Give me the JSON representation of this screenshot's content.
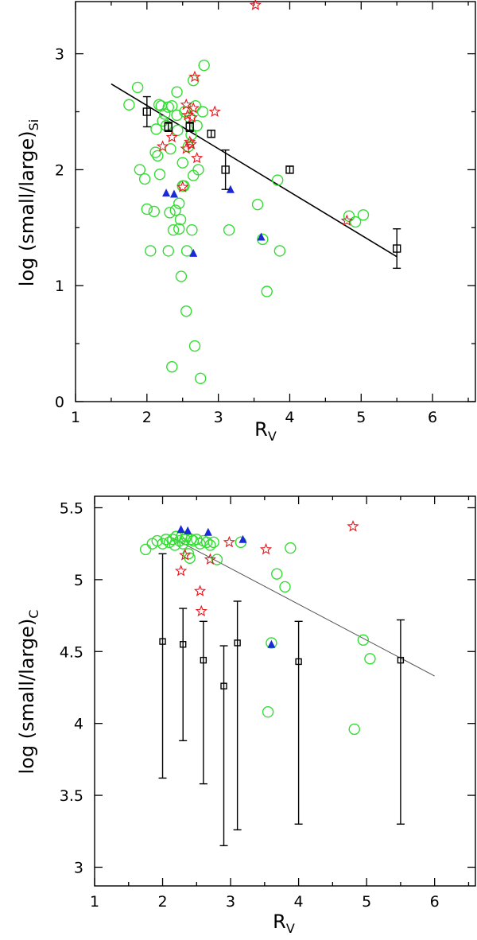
{
  "chart_data": [
    {
      "id": "panel-top",
      "type": "scatter",
      "title": "",
      "xlabel": "R",
      "xlabel_sub": "V",
      "ylabel": "log  (small/large)",
      "ylabel_sub": "Si",
      "xlim": [
        1,
        6.6
      ],
      "ylim": [
        0,
        3.45
      ],
      "xticks": [
        1,
        2,
        3,
        4,
        5,
        6
      ],
      "xtick_labels": [
        "1",
        "2",
        "3",
        "4",
        "5",
        "6"
      ],
      "yticks": [
        0,
        1,
        2,
        3
      ],
      "ytick_labels": [
        "0",
        "1",
        "2",
        "3"
      ],
      "xminor": [
        1.5,
        2.5,
        3.5,
        4.5,
        5.5,
        6.5
      ],
      "yminor": [
        0.5,
        1.5,
        2.5
      ],
      "series": [
        {
          "name": "circles",
          "marker": "circle",
          "color": "#33dd33",
          "points": [
            [
              1.75,
              2.56
            ],
            [
              1.87,
              2.71
            ],
            [
              1.9,
              2.0
            ],
            [
              1.97,
              1.92
            ],
            [
              2.0,
              1.66
            ],
            [
              2.05,
              1.3
            ],
            [
              2.1,
              1.64
            ],
            [
              2.12,
              2.15
            ],
            [
              2.13,
              2.35
            ],
            [
              2.15,
              2.12
            ],
            [
              2.17,
              2.56
            ],
            [
              2.18,
              1.96
            ],
            [
              2.2,
              2.55
            ],
            [
              2.22,
              2.42
            ],
            [
              2.25,
              2.48
            ],
            [
              2.27,
              2.38
            ],
            [
              2.3,
              2.54
            ],
            [
              2.3,
              1.3
            ],
            [
              2.32,
              1.63
            ],
            [
              2.33,
              2.18
            ],
            [
              2.35,
              2.55
            ],
            [
              2.35,
              0.3
            ],
            [
              2.37,
              1.48
            ],
            [
              2.4,
              1.65
            ],
            [
              2.42,
              2.47
            ],
            [
              2.42,
              2.67
            ],
            [
              2.43,
              2.34
            ],
            [
              2.45,
              1.49
            ],
            [
              2.45,
              1.71
            ],
            [
              2.47,
              1.57
            ],
            [
              2.48,
              1.08
            ],
            [
              2.5,
              2.06
            ],
            [
              2.5,
              1.86
            ],
            [
              2.52,
              1.86
            ],
            [
              2.53,
              2.5
            ],
            [
              2.55,
              0.78
            ],
            [
              2.56,
              1.3
            ],
            [
              2.58,
              2.2
            ],
            [
              2.6,
              2.45
            ],
            [
              2.62,
              2.3
            ],
            [
              2.63,
              1.48
            ],
            [
              2.65,
              1.95
            ],
            [
              2.65,
              2.77
            ],
            [
              2.67,
              0.48
            ],
            [
              2.68,
              2.55
            ],
            [
              2.7,
              2.38
            ],
            [
              2.72,
              2.0
            ],
            [
              2.75,
              0.2
            ],
            [
              2.78,
              2.5
            ],
            [
              2.8,
              2.9
            ],
            [
              3.15,
              1.48
            ],
            [
              3.55,
              1.7
            ],
            [
              3.62,
              1.4
            ],
            [
              3.68,
              0.95
            ],
            [
              3.83,
              1.91
            ],
            [
              3.86,
              1.3
            ],
            [
              4.83,
              1.6
            ],
            [
              4.92,
              1.55
            ],
            [
              5.03,
              1.61
            ]
          ]
        },
        {
          "name": "stars",
          "marker": "star",
          "color": "#e8141c",
          "points": [
            [
              2.22,
              2.2
            ],
            [
              2.35,
              2.28
            ],
            [
              2.5,
              1.85
            ],
            [
              2.55,
              2.56
            ],
            [
              2.55,
              2.18
            ],
            [
              2.57,
              2.47
            ],
            [
              2.6,
              2.24
            ],
            [
              2.62,
              2.22
            ],
            [
              2.63,
              2.45
            ],
            [
              2.65,
              2.53
            ],
            [
              2.67,
              2.8
            ],
            [
              2.7,
              2.1
            ],
            [
              2.95,
              2.5
            ],
            [
              3.52,
              3.42
            ],
            [
              4.8,
              1.56
            ]
          ]
        },
        {
          "name": "triangles",
          "marker": "triangle",
          "color": "#1a2ad8",
          "points": [
            [
              2.27,
              1.8
            ],
            [
              2.38,
              1.79
            ],
            [
              2.65,
              1.28
            ],
            [
              3.17,
              1.83
            ],
            [
              3.6,
              1.42
            ]
          ]
        },
        {
          "name": "squares",
          "marker": "square",
          "color": "#000000",
          "points": [
            [
              2.0,
              2.5,
              0.13
            ],
            [
              2.3,
              2.37,
              0.04
            ],
            [
              2.6,
              2.37,
              0.04
            ],
            [
              2.9,
              2.31,
              0.03
            ],
            [
              3.1,
              2.0,
              0.17
            ],
            [
              4.0,
              2.0,
              0.03
            ],
            [
              5.5,
              1.32,
              0.17
            ]
          ]
        },
        {
          "name": "fit-line",
          "marker": "line",
          "color": "#000000",
          "points": [
            [
              1.5,
              2.74
            ],
            [
              5.5,
              1.25
            ]
          ]
        }
      ]
    },
    {
      "id": "panel-bottom",
      "type": "scatter",
      "title": "",
      "xlabel": "R",
      "xlabel_sub": "V",
      "ylabel": "log  (small/large)",
      "ylabel_sub": "C",
      "xlim": [
        1,
        6.6
      ],
      "ylim": [
        2.87,
        5.58
      ],
      "xticks": [
        1,
        2,
        3,
        4,
        5,
        6
      ],
      "xtick_labels": [
        "1",
        "2",
        "3",
        "4",
        "5",
        "6"
      ],
      "yticks": [
        3,
        3.5,
        4,
        4.5,
        5,
        5.5
      ],
      "ytick_labels": [
        "3",
        "3.5",
        "4",
        "4.5",
        "5",
        "5.5"
      ],
      "xminor": [
        1.5,
        2.5,
        3.5,
        4.5,
        5.5,
        6.5
      ],
      "yminor": [],
      "series": [
        {
          "name": "circles",
          "marker": "circle",
          "color": "#33dd33",
          "points": [
            [
              1.75,
              5.21
            ],
            [
              1.85,
              5.25
            ],
            [
              1.92,
              5.27
            ],
            [
              2.0,
              5.25
            ],
            [
              2.05,
              5.28
            ],
            [
              2.1,
              5.26
            ],
            [
              2.15,
              5.28
            ],
            [
              2.18,
              5.24
            ],
            [
              2.2,
              5.3
            ],
            [
              2.25,
              5.27
            ],
            [
              2.28,
              5.3
            ],
            [
              2.3,
              5.25
            ],
            [
              2.33,
              5.28
            ],
            [
              2.35,
              5.3
            ],
            [
              2.38,
              5.18
            ],
            [
              2.4,
              5.15
            ],
            [
              2.42,
              5.28
            ],
            [
              2.45,
              5.27
            ],
            [
              2.5,
              5.28
            ],
            [
              2.55,
              5.25
            ],
            [
              2.6,
              5.27
            ],
            [
              2.65,
              5.26
            ],
            [
              2.7,
              5.24
            ],
            [
              2.75,
              5.26
            ],
            [
              2.8,
              5.14
            ],
            [
              3.15,
              5.26
            ],
            [
              3.55,
              4.08
            ],
            [
              3.6,
              4.56
            ],
            [
              3.68,
              5.04
            ],
            [
              3.8,
              4.95
            ],
            [
              3.88,
              5.22
            ],
            [
              4.82,
              3.96
            ],
            [
              4.95,
              4.58
            ],
            [
              5.05,
              4.45
            ]
          ]
        },
        {
          "name": "stars",
          "marker": "star",
          "color": "#e8141c",
          "points": [
            [
              2.27,
              5.06
            ],
            [
              2.33,
              5.17
            ],
            [
              2.55,
              4.92
            ],
            [
              2.57,
              4.78
            ],
            [
              2.7,
              5.14
            ],
            [
              2.98,
              5.26
            ],
            [
              3.52,
              5.21
            ],
            [
              4.8,
              5.37
            ]
          ]
        },
        {
          "name": "triangles",
          "marker": "triangle",
          "color": "#1a2ad8",
          "points": [
            [
              2.27,
              5.35
            ],
            [
              2.37,
              5.34
            ],
            [
              2.67,
              5.33
            ],
            [
              3.18,
              5.28
            ],
            [
              3.6,
              4.55
            ]
          ]
        },
        {
          "name": "squares",
          "marker": "square",
          "color": "#000000",
          "points": [
            [
              2.0,
              4.57,
              0.61,
              0.95
            ],
            [
              2.3,
              4.55,
              0.25,
              0.67
            ],
            [
              2.6,
              4.44,
              0.27,
              0.86
            ],
            [
              2.9,
              4.26,
              0.28,
              1.11
            ],
            [
              3.1,
              4.56,
              0.29,
              1.3
            ],
            [
              4.0,
              4.43,
              0.28,
              1.13
            ],
            [
              5.5,
              4.44,
              0.28,
              1.14
            ]
          ]
        },
        {
          "name": "fit-line",
          "marker": "line",
          "color": "#555555",
          "points": [
            [
              2.15,
              5.29
            ],
            [
              6.0,
              4.33
            ]
          ]
        }
      ]
    }
  ]
}
